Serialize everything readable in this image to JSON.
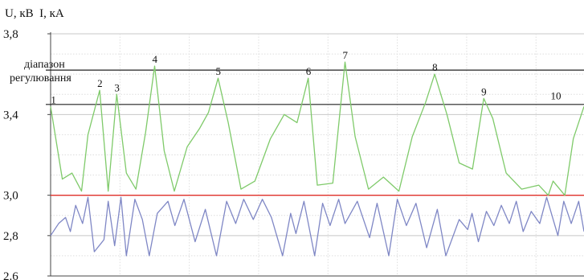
{
  "chart_data": {
    "type": "line",
    "title": "",
    "ylabel": "U, кВ  I, кА",
    "xlabel": "",
    "ylim": [
      2.6,
      3.8
    ],
    "xlim": [
      0,
      100
    ],
    "yticks": [
      {
        "value": 3.8,
        "label": "3,8"
      },
      {
        "value": 3.4,
        "label": "3,4"
      },
      {
        "value": 3.0,
        "label": "3,0"
      },
      {
        "value": 2.8,
        "label": "2,8"
      },
      {
        "value": 2.6,
        "label": "2.6"
      }
    ],
    "grid": true,
    "band": {
      "label_line1": "діапазон",
      "label_line2": "регулювання",
      "lower": 3.45,
      "upper": 3.62
    },
    "reference_line": {
      "value": 3.0,
      "color": "#e0302a"
    },
    "peak_labels": [
      {
        "label": "1",
        "x": 0.5,
        "y": 3.44
      },
      {
        "label": "2",
        "x": 9.2,
        "y": 3.52
      },
      {
        "label": "3",
        "x": 12.4,
        "y": 3.5
      },
      {
        "label": "4",
        "x": 19.5,
        "y": 3.64
      },
      {
        "label": "5",
        "x": 31.4,
        "y": 3.58
      },
      {
        "label": "6",
        "x": 48.3,
        "y": 3.58
      },
      {
        "label": "7",
        "x": 55.2,
        "y": 3.66
      },
      {
        "label": "8",
        "x": 72.0,
        "y": 3.6
      },
      {
        "label": "9",
        "x": 81.2,
        "y": 3.48
      },
      {
        "label": "10",
        "x": 94.2,
        "y": 3.46
      }
    ],
    "series": [
      {
        "color": "#7fca6a",
        "x": [
          0,
          2.2,
          4.0,
          5.8,
          7.0,
          9.2,
          10.8,
          12.4,
          14.2,
          16.0,
          17.8,
          19.5,
          21.3,
          23.2,
          25.6,
          27.9,
          29.6,
          31.4,
          33.3,
          35.7,
          38.3,
          41.2,
          43.8,
          46.2,
          48.3,
          50.0,
          52.9,
          55.2,
          57.1,
          59.6,
          62.4,
          65.3,
          67.8,
          70.3,
          72.0,
          74.3,
          76.6,
          79.1,
          81.2,
          82.9,
          85.4,
          88.3,
          91.5,
          93.3,
          94.2,
          96.4,
          98.0,
          100
        ],
        "values": [
          3.44,
          3.08,
          3.11,
          3.02,
          3.3,
          3.52,
          3.02,
          3.5,
          3.11,
          3.03,
          3.31,
          3.64,
          3.22,
          3.02,
          3.24,
          3.33,
          3.41,
          3.58,
          3.36,
          3.03,
          3.07,
          3.28,
          3.4,
          3.36,
          3.58,
          3.05,
          3.06,
          3.66,
          3.29,
          3.03,
          3.09,
          3.02,
          3.29,
          3.46,
          3.6,
          3.4,
          3.16,
          3.13,
          3.48,
          3.38,
          3.11,
          3.03,
          3.05,
          3.0,
          3.07,
          3.0,
          3.28,
          3.44
        ]
      },
      {
        "color": "#7f87c5",
        "x": [
          0,
          1.5,
          2.8,
          3.7,
          4.7,
          6.0,
          7.0,
          8.2,
          10.0,
          10.8,
          12.0,
          13.2,
          14.2,
          15.8,
          17.2,
          18.5,
          20.0,
          22.0,
          23.3,
          25.0,
          27.1,
          29.0,
          31.1,
          33.0,
          34.7,
          36.2,
          38.0,
          39.7,
          41.4,
          43.5,
          45.0,
          46.0,
          47.5,
          49.5,
          51.0,
          52.4,
          54.0,
          55.2,
          57.5,
          59.8,
          61.2,
          63.4,
          65.0,
          66.7,
          68.5,
          70.5,
          72.5,
          74.1,
          76.6,
          78.2,
          79.0,
          80.2,
          81.7,
          83.1,
          84.5,
          86.0,
          87.3,
          88.6,
          90.1,
          91.7,
          93.0,
          95.1,
          96.2,
          97.6,
          99.0,
          100
        ],
        "values": [
          2.8,
          2.86,
          2.89,
          2.82,
          2.95,
          2.86,
          2.99,
          2.72,
          2.78,
          2.97,
          2.75,
          2.99,
          2.7,
          2.98,
          2.88,
          2.7,
          2.91,
          2.97,
          2.85,
          2.98,
          2.77,
          2.93,
          2.7,
          2.97,
          2.86,
          2.98,
          2.88,
          2.98,
          2.89,
          2.7,
          2.91,
          2.81,
          2.97,
          2.7,
          2.96,
          2.85,
          2.98,
          2.86,
          2.97,
          2.79,
          2.96,
          2.7,
          2.98,
          2.85,
          2.96,
          2.74,
          2.93,
          2.7,
          2.88,
          2.83,
          2.91,
          2.77,
          2.92,
          2.85,
          2.95,
          2.86,
          2.97,
          2.82,
          2.92,
          2.86,
          2.99,
          2.8,
          2.97,
          2.86,
          2.97,
          2.82
        ]
      }
    ]
  }
}
